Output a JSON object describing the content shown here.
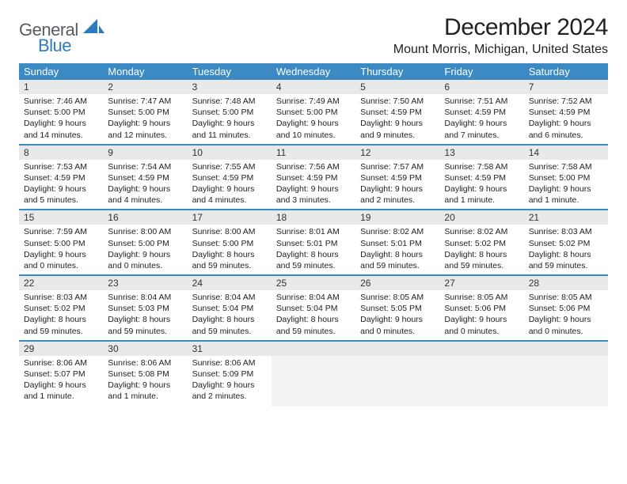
{
  "logo": {
    "line1": "General",
    "line2": "Blue"
  },
  "title": "December 2024",
  "location": "Mount Morris, Michigan, United States",
  "colors": {
    "header_bg": "#3b8ac4",
    "header_text": "#ffffff",
    "daynum_bg": "#e8e9ea",
    "border": "#3b8ac4",
    "logo_gray": "#555c63",
    "logo_blue": "#2b7bbf"
  },
  "typography": {
    "title_fontsize": 30,
    "location_fontsize": 16,
    "dayheader_fontsize": 13,
    "cell_fontsize": 10.5
  },
  "dayHeaders": [
    "Sunday",
    "Monday",
    "Tuesday",
    "Wednesday",
    "Thursday",
    "Friday",
    "Saturday"
  ],
  "weeks": [
    [
      {
        "n": "1",
        "sunrise": "Sunrise: 7:46 AM",
        "sunset": "Sunset: 5:00 PM",
        "day": "Daylight: 9 hours and 14 minutes."
      },
      {
        "n": "2",
        "sunrise": "Sunrise: 7:47 AM",
        "sunset": "Sunset: 5:00 PM",
        "day": "Daylight: 9 hours and 12 minutes."
      },
      {
        "n": "3",
        "sunrise": "Sunrise: 7:48 AM",
        "sunset": "Sunset: 5:00 PM",
        "day": "Daylight: 9 hours and 11 minutes."
      },
      {
        "n": "4",
        "sunrise": "Sunrise: 7:49 AM",
        "sunset": "Sunset: 5:00 PM",
        "day": "Daylight: 9 hours and 10 minutes."
      },
      {
        "n": "5",
        "sunrise": "Sunrise: 7:50 AM",
        "sunset": "Sunset: 4:59 PM",
        "day": "Daylight: 9 hours and 9 minutes."
      },
      {
        "n": "6",
        "sunrise": "Sunrise: 7:51 AM",
        "sunset": "Sunset: 4:59 PM",
        "day": "Daylight: 9 hours and 7 minutes."
      },
      {
        "n": "7",
        "sunrise": "Sunrise: 7:52 AM",
        "sunset": "Sunset: 4:59 PM",
        "day": "Daylight: 9 hours and 6 minutes."
      }
    ],
    [
      {
        "n": "8",
        "sunrise": "Sunrise: 7:53 AM",
        "sunset": "Sunset: 4:59 PM",
        "day": "Daylight: 9 hours and 5 minutes."
      },
      {
        "n": "9",
        "sunrise": "Sunrise: 7:54 AM",
        "sunset": "Sunset: 4:59 PM",
        "day": "Daylight: 9 hours and 4 minutes."
      },
      {
        "n": "10",
        "sunrise": "Sunrise: 7:55 AM",
        "sunset": "Sunset: 4:59 PM",
        "day": "Daylight: 9 hours and 4 minutes."
      },
      {
        "n": "11",
        "sunrise": "Sunrise: 7:56 AM",
        "sunset": "Sunset: 4:59 PM",
        "day": "Daylight: 9 hours and 3 minutes."
      },
      {
        "n": "12",
        "sunrise": "Sunrise: 7:57 AM",
        "sunset": "Sunset: 4:59 PM",
        "day": "Daylight: 9 hours and 2 minutes."
      },
      {
        "n": "13",
        "sunrise": "Sunrise: 7:58 AM",
        "sunset": "Sunset: 4:59 PM",
        "day": "Daylight: 9 hours and 1 minute."
      },
      {
        "n": "14",
        "sunrise": "Sunrise: 7:58 AM",
        "sunset": "Sunset: 5:00 PM",
        "day": "Daylight: 9 hours and 1 minute."
      }
    ],
    [
      {
        "n": "15",
        "sunrise": "Sunrise: 7:59 AM",
        "sunset": "Sunset: 5:00 PM",
        "day": "Daylight: 9 hours and 0 minutes."
      },
      {
        "n": "16",
        "sunrise": "Sunrise: 8:00 AM",
        "sunset": "Sunset: 5:00 PM",
        "day": "Daylight: 9 hours and 0 minutes."
      },
      {
        "n": "17",
        "sunrise": "Sunrise: 8:00 AM",
        "sunset": "Sunset: 5:00 PM",
        "day": "Daylight: 8 hours and 59 minutes."
      },
      {
        "n": "18",
        "sunrise": "Sunrise: 8:01 AM",
        "sunset": "Sunset: 5:01 PM",
        "day": "Daylight: 8 hours and 59 minutes."
      },
      {
        "n": "19",
        "sunrise": "Sunrise: 8:02 AM",
        "sunset": "Sunset: 5:01 PM",
        "day": "Daylight: 8 hours and 59 minutes."
      },
      {
        "n": "20",
        "sunrise": "Sunrise: 8:02 AM",
        "sunset": "Sunset: 5:02 PM",
        "day": "Daylight: 8 hours and 59 minutes."
      },
      {
        "n": "21",
        "sunrise": "Sunrise: 8:03 AM",
        "sunset": "Sunset: 5:02 PM",
        "day": "Daylight: 8 hours and 59 minutes."
      }
    ],
    [
      {
        "n": "22",
        "sunrise": "Sunrise: 8:03 AM",
        "sunset": "Sunset: 5:02 PM",
        "day": "Daylight: 8 hours and 59 minutes."
      },
      {
        "n": "23",
        "sunrise": "Sunrise: 8:04 AM",
        "sunset": "Sunset: 5:03 PM",
        "day": "Daylight: 8 hours and 59 minutes."
      },
      {
        "n": "24",
        "sunrise": "Sunrise: 8:04 AM",
        "sunset": "Sunset: 5:04 PM",
        "day": "Daylight: 8 hours and 59 minutes."
      },
      {
        "n": "25",
        "sunrise": "Sunrise: 8:04 AM",
        "sunset": "Sunset: 5:04 PM",
        "day": "Daylight: 8 hours and 59 minutes."
      },
      {
        "n": "26",
        "sunrise": "Sunrise: 8:05 AM",
        "sunset": "Sunset: 5:05 PM",
        "day": "Daylight: 9 hours and 0 minutes."
      },
      {
        "n": "27",
        "sunrise": "Sunrise: 8:05 AM",
        "sunset": "Sunset: 5:06 PM",
        "day": "Daylight: 9 hours and 0 minutes."
      },
      {
        "n": "28",
        "sunrise": "Sunrise: 8:05 AM",
        "sunset": "Sunset: 5:06 PM",
        "day": "Daylight: 9 hours and 0 minutes."
      }
    ],
    [
      {
        "n": "29",
        "sunrise": "Sunrise: 8:06 AM",
        "sunset": "Sunset: 5:07 PM",
        "day": "Daylight: 9 hours and 1 minute."
      },
      {
        "n": "30",
        "sunrise": "Sunrise: 8:06 AM",
        "sunset": "Sunset: 5:08 PM",
        "day": "Daylight: 9 hours and 1 minute."
      },
      {
        "n": "31",
        "sunrise": "Sunrise: 8:06 AM",
        "sunset": "Sunset: 5:09 PM",
        "day": "Daylight: 9 hours and 2 minutes."
      },
      null,
      null,
      null,
      null
    ]
  ]
}
